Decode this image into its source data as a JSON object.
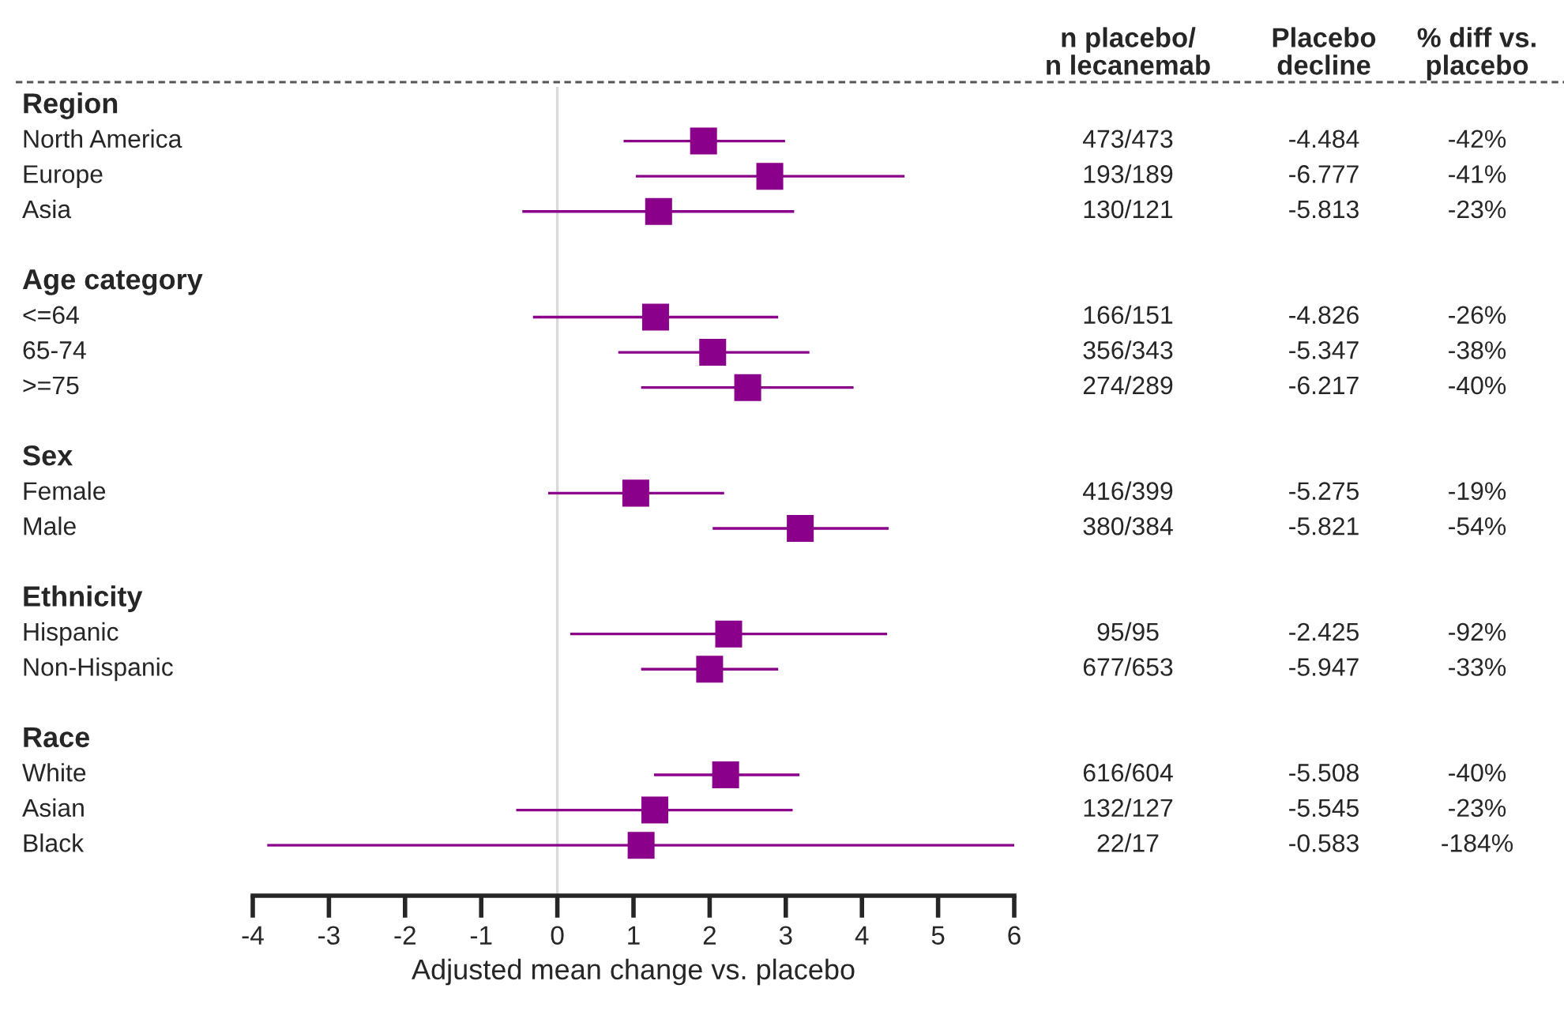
{
  "chart_data": {
    "type": "scatter",
    "orientation": "horizontal",
    "marker": "square",
    "color": "#8b008b",
    "grid": false,
    "xlabel": "Adjusted mean change vs. placebo",
    "xlim": [
      -4,
      6
    ],
    "xticks": [
      -4,
      -3,
      -2,
      -1,
      0,
      1,
      2,
      3,
      4,
      5,
      6
    ],
    "categories": [
      "Region",
      "North America",
      "Europe",
      "Asia",
      null,
      "Age category",
      "<=64",
      "65-74",
      ">=75",
      null,
      "Sex",
      "Female",
      "Male",
      null,
      "Ethnicity",
      "Hispanic",
      "Non-Hispanic",
      null,
      "Race",
      "White",
      "Asian",
      "Black"
    ],
    "values": [
      null,
      1.92,
      2.79,
      1.33,
      null,
      null,
      1.29,
      2.04,
      2.5,
      null,
      null,
      1.03,
      3.19,
      null,
      null,
      2.25,
      2.0,
      null,
      null,
      2.21,
      1.28,
      1.1
    ],
    "errors": [
      null,
      [
        0.87,
        2.99
      ],
      [
        1.03,
        4.56
      ],
      [
        -0.46,
        3.11
      ],
      null,
      null,
      [
        -0.32,
        2.9
      ],
      [
        0.8,
        3.31
      ],
      [
        1.1,
        3.89
      ],
      null,
      null,
      [
        -0.12,
        2.19
      ],
      [
        2.04,
        4.35
      ],
      null,
      null,
      [
        0.17,
        4.33
      ],
      [
        1.1,
        2.9
      ],
      null,
      null,
      [
        1.27,
        3.18
      ],
      [
        -0.54,
        3.09
      ],
      [
        -3.81,
        6.0
      ]
    ],
    "ref_lines": [
      {
        "axis": "x",
        "value": 0,
        "color": "#d9d9d9"
      }
    ],
    "annotations": [
      "n placebo/\nn lecanemab",
      "Placebo\ndecline",
      "% diff vs.\nplacebo",
      "473/473",
      "-4.484",
      "-42%",
      "193/189",
      "-6.777",
      "-41%",
      "130/121",
      "-5.813",
      "-23%",
      "166/151",
      "-4.826",
      "-26%",
      "356/343",
      "-5.347",
      "-38%",
      "274/289",
      "-6.217",
      "-40%",
      "416/399",
      "-5.275",
      "-19%",
      "380/384",
      "-5.821",
      "-54%",
      "95/95",
      "-2.425",
      "-92%",
      "677/653",
      "-5.947",
      "-33%",
      "616/604",
      "-5.508",
      "-40%",
      "132/127",
      "-5.545",
      "-23%",
      "22/17",
      "-0.583",
      "-184%"
    ]
  }
}
